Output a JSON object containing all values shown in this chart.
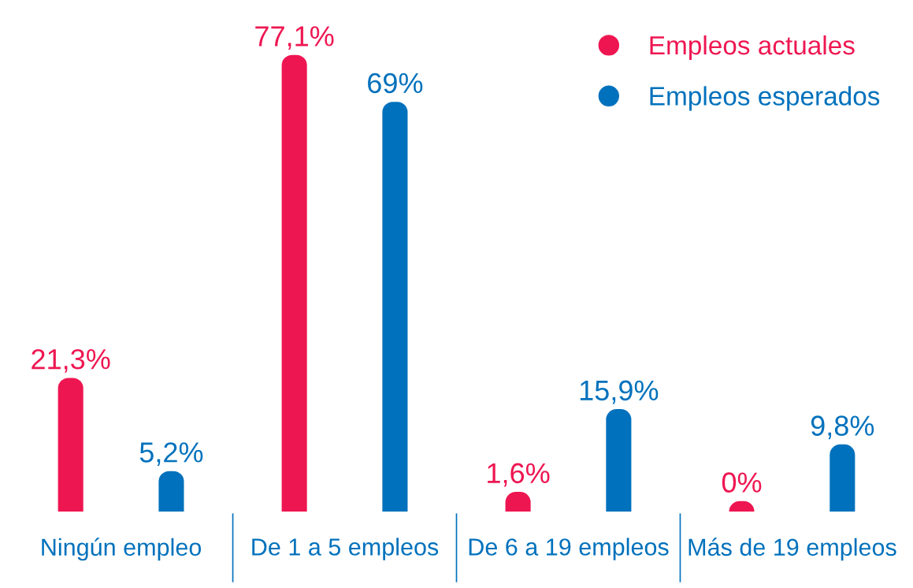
{
  "chart_data": {
    "type": "bar",
    "categories": [
      "Ningún empleo",
      "De 1 a 5 empleos",
      "De 6 a 19 empleos",
      "Más de 19 empleos"
    ],
    "series": [
      {
        "name": "Empleos actuales",
        "color": "#ee1651",
        "values": [
          21.3,
          77.1,
          1.6,
          0
        ],
        "value_labels": [
          "21,3%",
          "77,1%",
          "1,6%",
          "0%"
        ]
      },
      {
        "name": "Empleos esperados",
        "color": "#0071bc",
        "values": [
          5.2,
          69,
          15.9,
          9.8
        ],
        "value_labels": [
          "5,2%",
          "69%",
          "15,9%",
          "9,8%"
        ]
      }
    ],
    "legend": "top right",
    "grid": false
  }
}
